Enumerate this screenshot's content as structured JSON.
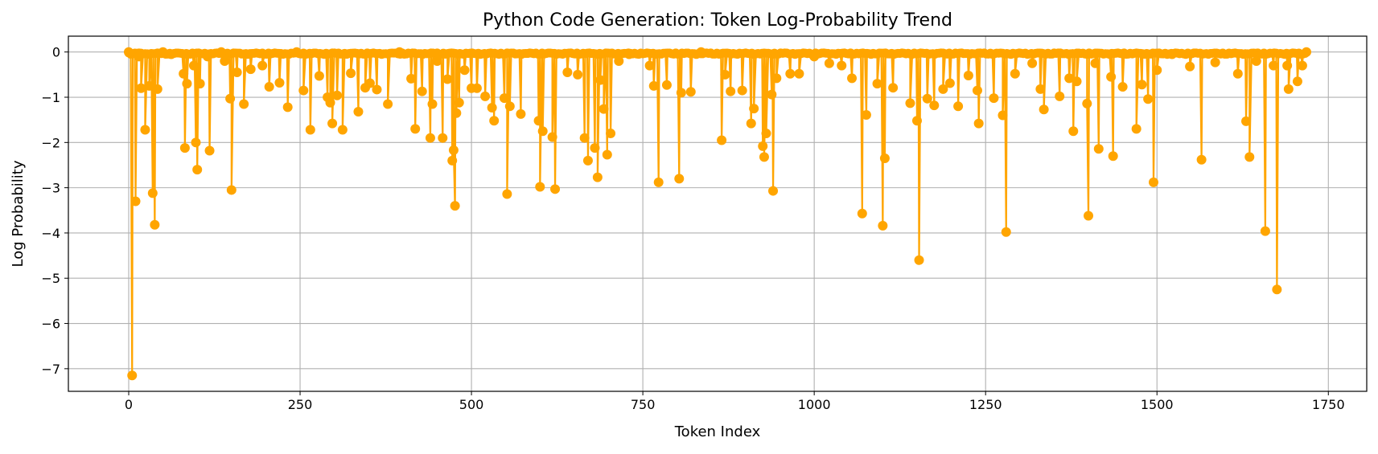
{
  "chart_data": {
    "type": "line",
    "title": "Python Code Generation: Token Log-Probability Trend",
    "xlabel": "Token Index",
    "ylabel": "Log Probability",
    "xlim": [
      -88,
      1806
    ],
    "ylim": [
      -7.5,
      0.35
    ],
    "xticks": [
      0,
      250,
      500,
      750,
      1000,
      1250,
      1500,
      1750
    ],
    "xtick_labels": [
      "0",
      "250",
      "500",
      "750",
      "1000",
      "1250",
      "1500",
      "1750"
    ],
    "yticks": [
      0,
      -1,
      -2,
      -3,
      -4,
      -5,
      -6,
      -7
    ],
    "ytick_labels": [
      "0",
      "−1",
      "−2",
      "−3",
      "−4",
      "−5",
      "−6",
      "−7"
    ],
    "grid": true,
    "line_color": "#FFA500",
    "marker": "circle",
    "series": [
      {
        "points": [
          [
            0,
            0
          ],
          [
            5,
            -7.15
          ],
          [
            10,
            -3.3
          ],
          [
            15,
            -0.1
          ],
          [
            18,
            -0.8
          ],
          [
            24,
            -1.72
          ],
          [
            30,
            -0.75
          ],
          [
            35,
            -3.12
          ],
          [
            38,
            -3.82
          ],
          [
            42,
            -0.82
          ],
          [
            50,
            0
          ],
          [
            62,
            -0.05
          ],
          [
            80,
            -0.48
          ],
          [
            82,
            -2.12
          ],
          [
            85,
            -0.7
          ],
          [
            95,
            -0.3
          ],
          [
            98,
            -2.0
          ],
          [
            100,
            -2.6
          ],
          [
            104,
            -0.7
          ],
          [
            115,
            -0.1
          ],
          [
            118,
            -2.18
          ],
          [
            135,
            0
          ],
          [
            140,
            -0.2
          ],
          [
            148,
            -1.03
          ],
          [
            150,
            -3.05
          ],
          [
            158,
            -0.45
          ],
          [
            168,
            -1.15
          ],
          [
            178,
            -0.38
          ],
          [
            195,
            -0.3
          ],
          [
            205,
            -0.77
          ],
          [
            220,
            -0.68
          ],
          [
            232,
            -1.22
          ],
          [
            245,
            0
          ],
          [
            255,
            -0.85
          ],
          [
            265,
            -1.72
          ],
          [
            278,
            -0.53
          ],
          [
            290,
            -1.0
          ],
          [
            294,
            -1.12
          ],
          [
            297,
            -1.58
          ],
          [
            304,
            -0.96
          ],
          [
            312,
            -1.72
          ],
          [
            324,
            -0.47
          ],
          [
            335,
            -1.32
          ],
          [
            345,
            -0.79
          ],
          [
            352,
            -0.69
          ],
          [
            362,
            -0.83
          ],
          [
            378,
            -1.15
          ],
          [
            395,
            0
          ],
          [
            412,
            -0.59
          ],
          [
            418,
            -1.7
          ],
          [
            428,
            -0.87
          ],
          [
            440,
            -1.9
          ],
          [
            443,
            -1.15
          ],
          [
            450,
            -0.2
          ],
          [
            458,
            -1.9
          ],
          [
            465,
            -0.6
          ],
          [
            472,
            -2.4
          ],
          [
            474,
            -2.17
          ],
          [
            476,
            -3.4
          ],
          [
            478,
            -1.35
          ],
          [
            482,
            -1.12
          ],
          [
            490,
            -0.4
          ],
          [
            500,
            -0.8
          ],
          [
            508,
            -0.8
          ],
          [
            520,
            -0.98
          ],
          [
            530,
            -1.23
          ],
          [
            533,
            -1.52
          ],
          [
            548,
            -1.02
          ],
          [
            552,
            -3.14
          ],
          [
            556,
            -1.2
          ],
          [
            572,
            -1.37
          ],
          [
            598,
            -1.52
          ],
          [
            600,
            -2.98
          ],
          [
            604,
            -1.75
          ],
          [
            618,
            -1.88
          ],
          [
            622,
            -3.03
          ],
          [
            640,
            -0.45
          ],
          [
            655,
            -0.5
          ],
          [
            665,
            -1.9
          ],
          [
            670,
            -2.4
          ],
          [
            680,
            -2.12
          ],
          [
            684,
            -2.77
          ],
          [
            688,
            -0.62
          ],
          [
            693,
            -1.26
          ],
          [
            698,
            -2.27
          ],
          [
            703,
            -1.8
          ],
          [
            715,
            -0.2
          ],
          [
            730,
            -0.05
          ],
          [
            760,
            -0.3
          ],
          [
            766,
            -0.75
          ],
          [
            773,
            -2.88
          ],
          [
            785,
            -0.73
          ],
          [
            803,
            -2.8
          ],
          [
            806,
            -0.9
          ],
          [
            820,
            -0.88
          ],
          [
            835,
            0
          ],
          [
            865,
            -1.95
          ],
          [
            870,
            -0.5
          ],
          [
            878,
            -0.87
          ],
          [
            895,
            -0.85
          ],
          [
            908,
            -1.58
          ],
          [
            912,
            -1.25
          ],
          [
            925,
            -2.08
          ],
          [
            927,
            -2.32
          ],
          [
            930,
            -1.8
          ],
          [
            938,
            -0.94
          ],
          [
            940,
            -3.07
          ],
          [
            945,
            -0.58
          ],
          [
            965,
            -0.48
          ],
          [
            978,
            -0.48
          ],
          [
            1000,
            -0.1
          ],
          [
            1022,
            -0.25
          ],
          [
            1040,
            -0.3
          ],
          [
            1055,
            -0.58
          ],
          [
            1070,
            -3.57
          ],
          [
            1076,
            -1.39
          ],
          [
            1092,
            -0.7
          ],
          [
            1100,
            -3.84
          ],
          [
            1103,
            -2.35
          ],
          [
            1115,
            -0.79
          ],
          [
            1140,
            -1.13
          ],
          [
            1150,
            -1.52
          ],
          [
            1153,
            -4.6
          ],
          [
            1165,
            -1.03
          ],
          [
            1175,
            -1.18
          ],
          [
            1188,
            -0.82
          ],
          [
            1198,
            -0.69
          ],
          [
            1210,
            -1.2
          ],
          [
            1225,
            -0.52
          ],
          [
            1238,
            -0.85
          ],
          [
            1240,
            -1.58
          ],
          [
            1262,
            -1.02
          ],
          [
            1275,
            -1.4
          ],
          [
            1280,
            -3.98
          ],
          [
            1293,
            -0.48
          ],
          [
            1318,
            -0.25
          ],
          [
            1330,
            -0.82
          ],
          [
            1335,
            -1.27
          ],
          [
            1358,
            -0.98
          ],
          [
            1372,
            -0.58
          ],
          [
            1378,
            -1.75
          ],
          [
            1383,
            -0.65
          ],
          [
            1398,
            -1.14
          ],
          [
            1400,
            -3.62
          ],
          [
            1410,
            -0.25
          ],
          [
            1415,
            -2.14
          ],
          [
            1433,
            -0.55
          ],
          [
            1436,
            -2.3
          ],
          [
            1450,
            -0.77
          ],
          [
            1470,
            -1.7
          ],
          [
            1478,
            -0.72
          ],
          [
            1487,
            -1.04
          ],
          [
            1495,
            -2.88
          ],
          [
            1500,
            -0.4
          ],
          [
            1522,
            -0.05
          ],
          [
            1548,
            -0.32
          ],
          [
            1565,
            -2.38
          ],
          [
            1585,
            -0.23
          ],
          [
            1618,
            -0.48
          ],
          [
            1630,
            -1.53
          ],
          [
            1635,
            -2.32
          ],
          [
            1645,
            -0.2
          ],
          [
            1658,
            -3.96
          ],
          [
            1670,
            -0.3
          ],
          [
            1675,
            -5.25
          ],
          [
            1690,
            -0.3
          ],
          [
            1692,
            -0.82
          ],
          [
            1705,
            -0.65
          ],
          [
            1712,
            -0.3
          ],
          [
            1718,
            0
          ]
        ]
      }
    ]
  }
}
